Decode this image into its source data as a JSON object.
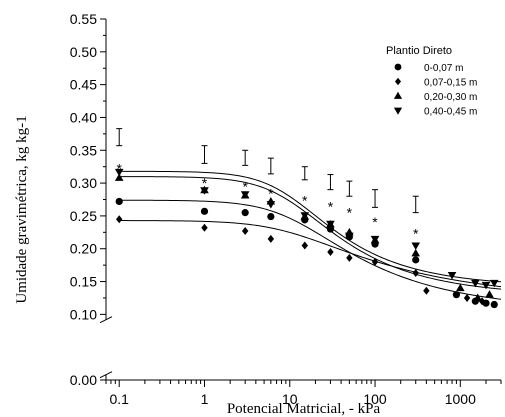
{
  "chart_data": {
    "type": "scatter",
    "title": "",
    "xlabel": "Potencial Matricial, - kPa",
    "ylabel": "Umidade gravimétrica, kg kg-1",
    "x_scale": "log",
    "xlim": [
      0.07,
      3000
    ],
    "ylim": [
      0,
      0.55
    ],
    "y_axis_break": [
      0.005,
      0.095
    ],
    "grid": false,
    "x_ticks": [
      0.1,
      1,
      10,
      100,
      1000
    ],
    "x_tick_labels": [
      "0.1",
      "1",
      "10",
      "100",
      "1000"
    ],
    "y_ticks": [
      0.0,
      0.1,
      0.15,
      0.2,
      0.25,
      0.3,
      0.35,
      0.4,
      0.45,
      0.5,
      0.55
    ],
    "y_tick_labels": [
      "0.00",
      "0.10",
      "0.15",
      "0.20",
      "0.25",
      "0.30",
      "0.35",
      "0.40",
      "0.45",
      "0.50",
      "0.55"
    ],
    "legend": {
      "title": "Plantio Direto",
      "placement": "top-right"
    },
    "series": [
      {
        "name": "0-0,07 m",
        "marker": "circle",
        "x": [
          0.1,
          1,
          3,
          6,
          15,
          30,
          50,
          100,
          300,
          900,
          1500,
          2000,
          2500
        ],
        "y": [
          0.272,
          0.257,
          0.255,
          0.249,
          0.244,
          0.23,
          0.218,
          0.207,
          0.183,
          0.13,
          0.12,
          0.117,
          0.115
        ],
        "fit": {
          "theta_s": 0.274,
          "theta_r": 0.105,
          "alpha": 0.09,
          "n": 1.4
        }
      },
      {
        "name": "0,07-0,15 m",
        "marker": "diamond",
        "x": [
          0.1,
          1,
          3,
          6,
          15,
          30,
          50,
          100,
          300,
          400,
          1200,
          1800
        ],
        "y": [
          0.245,
          0.232,
          0.227,
          0.215,
          0.205,
          0.195,
          0.186,
          0.18,
          0.163,
          0.136,
          0.125,
          0.12
        ],
        "fit": {
          "theta_s": 0.243,
          "theta_r": 0.12,
          "alpha": 0.1,
          "n": 1.3
        }
      },
      {
        "name": "0,20-0,30 m",
        "marker": "triangle-up",
        "x": [
          0.1,
          1,
          3,
          6,
          15,
          30,
          50,
          100,
          300,
          1000,
          1600,
          2200
        ],
        "y": [
          0.308,
          0.289,
          0.281,
          0.272,
          0.249,
          0.237,
          0.225,
          0.213,
          0.193,
          0.14,
          0.125,
          0.13
        ],
        "fit": {
          "theta_s": 0.31,
          "theta_r": 0.128,
          "alpha": 0.1,
          "n": 1.5
        }
      },
      {
        "name": "0,40-0,45 m",
        "marker": "triangle-down",
        "x": [
          0.1,
          1,
          3,
          6,
          15,
          30,
          50,
          100,
          300,
          800,
          1500,
          2000,
          2500
        ],
        "y": [
          0.317,
          0.289,
          0.283,
          0.268,
          0.251,
          0.238,
          0.22,
          0.215,
          0.205,
          0.16,
          0.148,
          0.145,
          0.148
        ],
        "fit": {
          "theta_s": 0.318,
          "theta_r": 0.142,
          "alpha": 0.1,
          "n": 1.55
        }
      }
    ],
    "annotations": {
      "significance_asterisks": {
        "symbol": "*",
        "x": [
          0.1,
          1,
          3,
          6,
          15,
          30,
          50,
          100,
          300
        ],
        "y": [
          0.327,
          0.305,
          0.299,
          0.289,
          0.278,
          0.269,
          0.26,
          0.245,
          0.228
        ]
      },
      "error_bars": {
        "x": [
          0.1,
          1,
          3,
          6,
          15,
          30,
          50,
          100,
          300
        ],
        "low": [
          0.357,
          0.33,
          0.327,
          0.314,
          0.305,
          0.29,
          0.28,
          0.263,
          0.255
        ],
        "high": [
          0.383,
          0.357,
          0.35,
          0.338,
          0.325,
          0.313,
          0.303,
          0.29,
          0.28
        ]
      }
    }
  }
}
